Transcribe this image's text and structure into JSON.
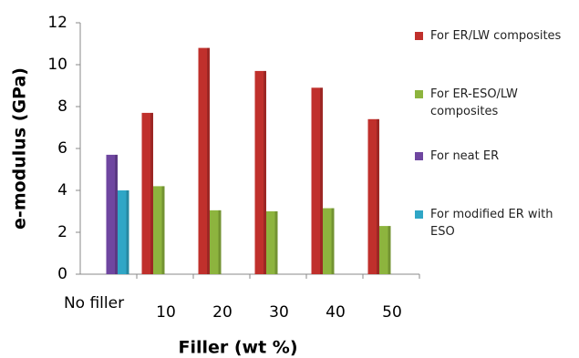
{
  "chart_data": {
    "type": "bar",
    "y_label": "e-modulus (GPa)",
    "x_label": "Filler (wt %)",
    "categories": [
      "No filler",
      "10",
      "20",
      "30",
      "40",
      "50"
    ],
    "series": [
      {
        "name": "For ER/LW composites",
        "color": "#c0302c",
        "values": [
          null,
          7.7,
          10.8,
          9.7,
          8.9,
          7.4
        ]
      },
      {
        "name": "For ER-ESO/LW composites",
        "color": "#8db43e",
        "values": [
          null,
          4.2,
          3.05,
          3.0,
          3.15,
          2.3
        ]
      },
      {
        "name": "For neat ER",
        "color": "#6f46a0",
        "values": [
          5.7,
          null,
          null,
          null,
          null,
          null
        ]
      },
      {
        "name": "For modified ER with ESO",
        "color": "#2fa6c6",
        "values": [
          4.0,
          null,
          null,
          null,
          null,
          null
        ]
      }
    ],
    "ylim": [
      0,
      12
    ],
    "yticks": [
      0,
      2,
      4,
      6,
      8,
      10,
      12
    ],
    "grid": false
  }
}
